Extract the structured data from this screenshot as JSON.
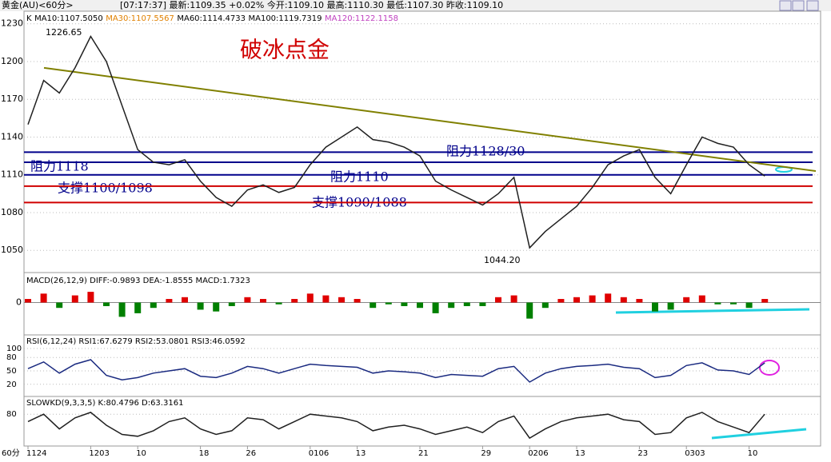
{
  "header": {
    "symbol": "黄金(AU)<60分>",
    "quote": "[07:17:37] 最新:1109.35 +0.02% 今开:1109.10 最高:1110.30 最低:1107.30 昨收:1109.10"
  },
  "chart_data": {
    "type": "line",
    "title": "破冰点金",
    "legend": [
      "K",
      "MA10:1107.5050",
      "MA30:1107.5567",
      "MA60:1114.4733",
      "MA100:1119.7319",
      "MA120:1122.1158"
    ],
    "legend_colors": [
      "#000000",
      "#000000",
      "#e08000",
      "#000000",
      "#000000",
      "#c040c0"
    ],
    "categories": [
      "1124",
      null,
      null,
      null,
      "1203",
      null,
      null,
      "10",
      null,
      null,
      null,
      "18",
      null,
      null,
      "26",
      null,
      null,
      null,
      "0106",
      null,
      null,
      "13",
      null,
      null,
      null,
      "21",
      null,
      null,
      null,
      "29",
      null,
      null,
      "0206",
      null,
      null,
      "13",
      null,
      null,
      null,
      "23",
      null,
      null,
      "0303",
      null,
      null,
      null,
      "10",
      null
    ],
    "series": [
      {
        "name": "K",
        "color": "#202020",
        "values": [
          1150,
          1185,
          1175,
          1195,
          1220,
          1200,
          1165,
          1130,
          1120,
          1118,
          1122,
          1105,
          1092,
          1085,
          1098,
          1102,
          1096,
          1100,
          1118,
          1132,
          1140,
          1148,
          1138,
          1136,
          1132,
          1125,
          1105,
          1098,
          1092,
          1086,
          1095,
          1108,
          1052,
          1065,
          1075,
          1085,
          1100,
          1118,
          1125,
          1130,
          1108,
          1095,
          1118,
          1140,
          1135,
          1132,
          1118,
          1109
        ]
      }
    ],
    "ylim": [
      1030,
      1240
    ],
    "yticks": [
      1050,
      1080,
      1110,
      1140,
      1170,
      1200,
      1230
    ],
    "levels": [
      {
        "value": 1128,
        "color": "#00008b"
      },
      {
        "value": 1120,
        "color": "#00008b"
      },
      {
        "value": 1110,
        "color": "#00008b"
      },
      {
        "value": 1101,
        "color": "#d00000"
      },
      {
        "value": 1088,
        "color": "#d00000"
      }
    ],
    "trend": {
      "start": 1195,
      "end": 1113,
      "color": "#808000"
    },
    "annotations": [
      "阻力1118",
      "支撑1100/1098",
      "阻力1110",
      "阻力1128/30",
      "支撑1090/1088",
      "1226.65",
      "1044.20"
    ],
    "macd": {
      "label": "MACD(26,12,9) DIFF:-0.9893 DEA:-1.8555 MACD:1.7323",
      "ylim": [
        -15,
        15
      ],
      "yticks": [
        0
      ],
      "up_color": "#e00000",
      "down_color": "#008000",
      "values": [
        2,
        5,
        -3,
        4,
        6,
        -2,
        -8,
        -6,
        -3,
        2,
        3,
        -4,
        -5,
        -2,
        3,
        2,
        -1,
        2,
        5,
        4,
        3,
        2,
        -3,
        -1,
        -2,
        -3,
        -6,
        -3,
        -2,
        -2,
        3,
        4,
        -9,
        -3,
        2,
        3,
        4,
        5,
        3,
        2,
        -5,
        -4,
        3,
        4,
        -1,
        -1,
        -3,
        2
      ]
    },
    "rsi": {
      "label": "RSI(6,12,24) RSI1:67.6279 RSI2:53.0801 RSI3:46.0592",
      "ylim": [
        0,
        100
      ],
      "yticks": [
        20,
        50,
        80,
        100
      ],
      "color": "#1a2a80",
      "values": [
        55,
        70,
        45,
        65,
        75,
        40,
        30,
        35,
        45,
        50,
        55,
        38,
        35,
        45,
        60,
        55,
        45,
        55,
        65,
        62,
        60,
        58,
        45,
        50,
        48,
        45,
        35,
        42,
        40,
        38,
        55,
        60,
        25,
        45,
        55,
        60,
        62,
        65,
        58,
        55,
        35,
        40,
        62,
        68,
        52,
        50,
        42,
        68
      ]
    },
    "kd": {
      "label": "SLOWKD(9,3,3,5) K:80.4796 D:63.3161",
      "ylim": [
        0,
        100
      ],
      "yticks": [
        80
      ],
      "color": "#202020",
      "values": [
        60,
        80,
        40,
        70,
        85,
        50,
        25,
        20,
        35,
        60,
        70,
        40,
        25,
        35,
        70,
        65,
        40,
        60,
        80,
        75,
        70,
        60,
        35,
        45,
        50,
        40,
        25,
        35,
        45,
        30,
        60,
        75,
        15,
        40,
        60,
        70,
        75,
        80,
        65,
        60,
        25,
        30,
        70,
        85,
        60,
        45,
        30,
        80
      ]
    },
    "period": "60分"
  }
}
